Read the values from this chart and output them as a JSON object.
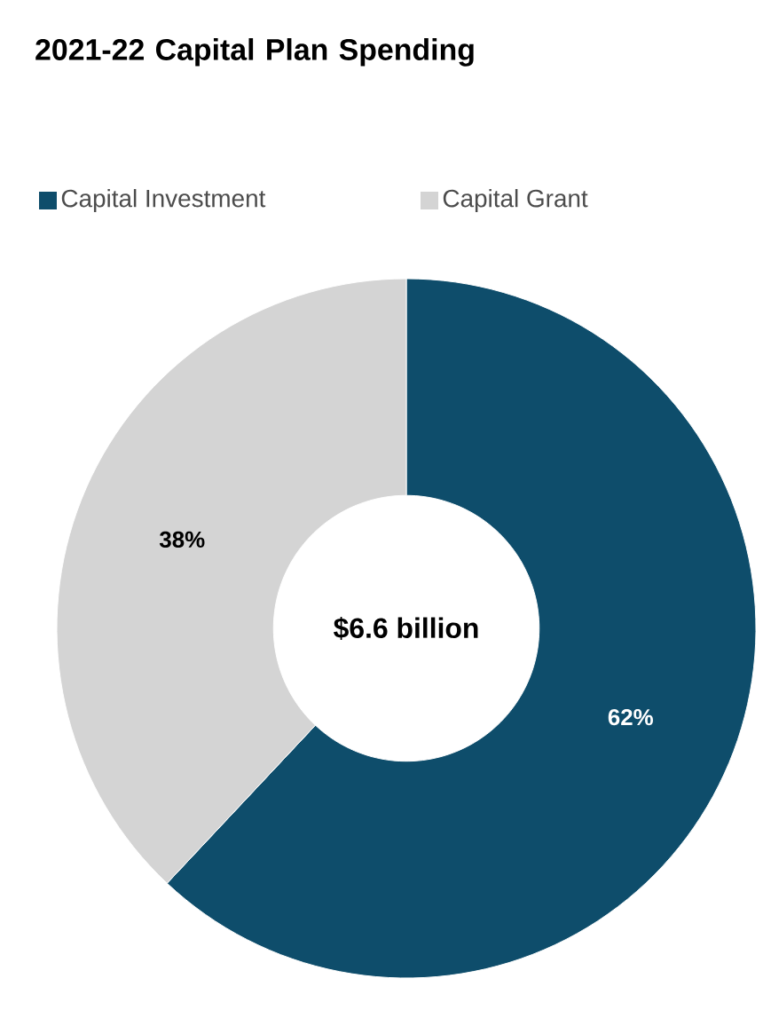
{
  "chart_data": {
    "type": "donut",
    "title": "2021-22 Capital Plan Spending",
    "categories": [
      "Capital Investment",
      "Capital Grant"
    ],
    "values": [
      62,
      38
    ],
    "colors": [
      "#0e4d6b",
      "#d4d4d4"
    ],
    "value_labels": [
      "62%",
      "38%"
    ],
    "legend": "top",
    "annotations": [
      "$6.6 billion"
    ]
  }
}
